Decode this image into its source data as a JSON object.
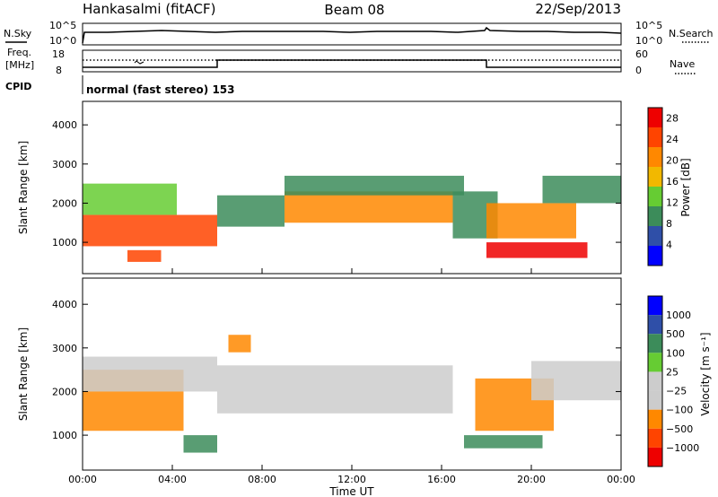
{
  "header": {
    "station": "Hankasalmi (fitACF)",
    "beam": "Beam 08",
    "date": "22/Sep/2013"
  },
  "noise_panel": {
    "left_label": "N.Sky",
    "right_label": "N.Search",
    "left_ticks": [
      "10^5",
      "10^0"
    ],
    "right_ticks": [
      "10^5",
      "10^0"
    ]
  },
  "freq_panel": {
    "left_label_line1": "Freq.",
    "left_label_line2": "[MHz]",
    "left_ticks": [
      "18",
      "8"
    ],
    "right_ticks": [
      "60",
      "0"
    ],
    "right_label": "Nave"
  },
  "cpid": {
    "label": "CPID",
    "text": "normal (fast stereo) 153"
  },
  "x_axis": {
    "label": "Time UT",
    "ticks": [
      "00:00",
      "04:00",
      "08:00",
      "12:00",
      "16:00",
      "20:00",
      "00:00"
    ]
  },
  "colors": {
    "power_scale": [
      "#0000ff",
      "#2f4fa8",
      "#3c8c5a",
      "#66cc33",
      "#f2b800",
      "#ff8800",
      "#ff4400",
      "#ee0000"
    ],
    "velocity_scale": [
      "#ee0000",
      "#ff4400",
      "#ff8800",
      "#cccccc",
      "#cccccc",
      "#66cc33",
      "#3c8c5a",
      "#2f4fa8",
      "#0000ff"
    ]
  },
  "chart_data": [
    {
      "type": "heatmap",
      "name": "power-panel",
      "xlabel": "",
      "ylabel": "Slant Range [km]",
      "y_ticks": [
        "1000",
        "2000",
        "3000",
        "4000"
      ],
      "ylim": [
        200,
        4600
      ],
      "xlim_hours": [
        0,
        24
      ],
      "colorbar_label": "Power [dB]",
      "colorbar_ticks": [
        "4",
        "8",
        "12",
        "16",
        "20",
        "24",
        "28"
      ],
      "colorbar_range": [
        0,
        30
      ],
      "regions": [
        {
          "t0": 0.0,
          "t1": 6.0,
          "r0": 900,
          "r1": 1700,
          "value": 26
        },
        {
          "t0": 0.0,
          "t1": 4.2,
          "r0": 1700,
          "r1": 2500,
          "value": 12
        },
        {
          "t0": 2.0,
          "t1": 3.5,
          "r0": 500,
          "r1": 800,
          "value": 24
        },
        {
          "t0": 6.0,
          "t1": 9.0,
          "r0": 1400,
          "r1": 2200,
          "value": 8
        },
        {
          "t0": 9.0,
          "t1": 16.5,
          "r0": 1500,
          "r1": 2300,
          "value": 22
        },
        {
          "t0": 9.0,
          "t1": 17.0,
          "r0": 2200,
          "r1": 2700,
          "value": 10
        },
        {
          "t0": 16.5,
          "t1": 18.5,
          "r0": 1100,
          "r1": 2300,
          "value": 8
        },
        {
          "t0": 18.0,
          "t1": 22.5,
          "r0": 600,
          "r1": 1000,
          "value": 28
        },
        {
          "t0": 18.0,
          "t1": 22.0,
          "r0": 1100,
          "r1": 2000,
          "value": 20
        },
        {
          "t0": 20.5,
          "t1": 24.0,
          "r0": 2000,
          "r1": 2700,
          "value": 8
        }
      ]
    },
    {
      "type": "heatmap",
      "name": "velocity-panel",
      "xlabel": "Time UT",
      "ylabel": "Slant Range [km]",
      "y_ticks": [
        "1000",
        "2000",
        "3000",
        "4000"
      ],
      "ylim": [
        200,
        4600
      ],
      "xlim_hours": [
        0,
        24
      ],
      "colorbar_label": "Velocity [m s⁻¹]",
      "colorbar_ticks": [
        "1000",
        "500",
        "100",
        "25",
        "−25",
        "−100",
        "−500",
        "−1000"
      ],
      "regions": [
        {
          "t0": 0.0,
          "t1": 4.5,
          "r0": 1100,
          "r1": 2500,
          "value": -300
        },
        {
          "t0": 0.0,
          "t1": 6.0,
          "r0": 2000,
          "r1": 2800,
          "value": 0
        },
        {
          "t0": 4.5,
          "t1": 6.0,
          "r0": 600,
          "r1": 1000,
          "value": 80
        },
        {
          "t0": 6.0,
          "t1": 16.5,
          "r0": 1500,
          "r1": 2600,
          "value": 0
        },
        {
          "t0": 6.5,
          "t1": 7.5,
          "r0": 2900,
          "r1": 3300,
          "value": -300
        },
        {
          "t0": 17.0,
          "t1": 20.5,
          "r0": 700,
          "r1": 1000,
          "value": 80
        },
        {
          "t0": 17.5,
          "t1": 21.0,
          "r0": 1100,
          "r1": 2300,
          "value": -300
        },
        {
          "t0": 20.0,
          "t1": 24.0,
          "r0": 1800,
          "r1": 2700,
          "value": 0
        }
      ]
    }
  ]
}
